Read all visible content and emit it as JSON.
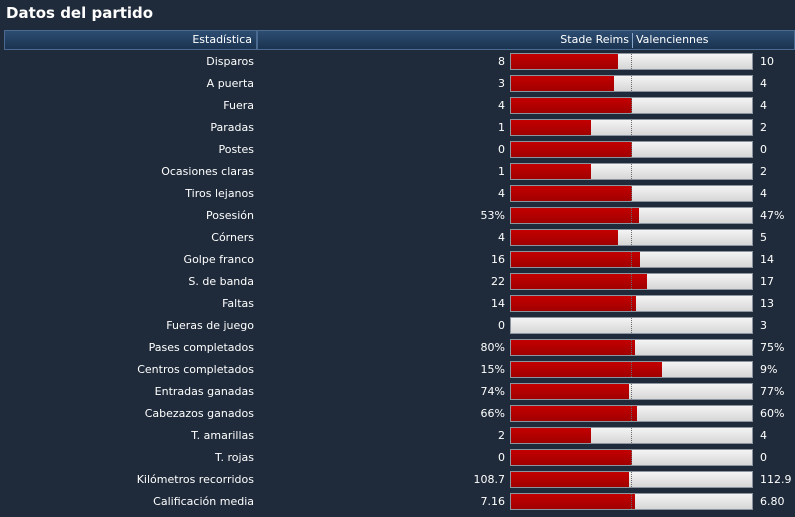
{
  "title": "Datos del partido",
  "columns": {
    "stat": "Estadística",
    "home": "Stade Reims",
    "away": "Valenciennes"
  },
  "colors": {
    "home_bar": "#b00000",
    "away_bar": "#e6e6e6",
    "background": "#1f2b3a"
  },
  "stats": [
    {
      "label": "Disparos",
      "home": "8",
      "away": "10",
      "home_share": 0.444
    },
    {
      "label": "A puerta",
      "home": "3",
      "away": "4",
      "home_share": 0.429
    },
    {
      "label": "Fuera",
      "home": "4",
      "away": "4",
      "home_share": 0.5
    },
    {
      "label": "Paradas",
      "home": "1",
      "away": "2",
      "home_share": 0.333
    },
    {
      "label": "Postes",
      "home": "0",
      "away": "0",
      "home_share": 0.5
    },
    {
      "label": "Ocasiones claras",
      "home": "1",
      "away": "2",
      "home_share": 0.333
    },
    {
      "label": "Tiros lejanos",
      "home": "4",
      "away": "4",
      "home_share": 0.5
    },
    {
      "label": "Posesión",
      "home": "53%",
      "away": "47%",
      "home_share": 0.53
    },
    {
      "label": "Córners",
      "home": "4",
      "away": "5",
      "home_share": 0.444
    },
    {
      "label": "Golpe franco",
      "home": "16",
      "away": "14",
      "home_share": 0.533
    },
    {
      "label": "S. de banda",
      "home": "22",
      "away": "17",
      "home_share": 0.564
    },
    {
      "label": "Faltas",
      "home": "14",
      "away": "13",
      "home_share": 0.519
    },
    {
      "label": "Fueras de juego",
      "home": "0",
      "away": "3",
      "home_share": 0.0
    },
    {
      "label": "Pases completados",
      "home": "80%",
      "away": "75%",
      "home_share": 0.516
    },
    {
      "label": "Centros completados",
      "home": "15%",
      "away": "9%",
      "home_share": 0.625
    },
    {
      "label": "Entradas ganadas",
      "home": "74%",
      "away": "77%",
      "home_share": 0.49
    },
    {
      "label": "Cabezazos ganados",
      "home": "66%",
      "away": "60%",
      "home_share": 0.524
    },
    {
      "label": "T. amarillas",
      "home": "2",
      "away": "4",
      "home_share": 0.333
    },
    {
      "label": "T. rojas",
      "home": "0",
      "away": "0",
      "home_share": 0.5
    },
    {
      "label": "Kilómetros recorridos",
      "home": "108.7",
      "away": "112.9",
      "home_share": 0.491
    },
    {
      "label": "Calificación media",
      "home": "7.16",
      "away": "6.80",
      "home_share": 0.513
    }
  ]
}
